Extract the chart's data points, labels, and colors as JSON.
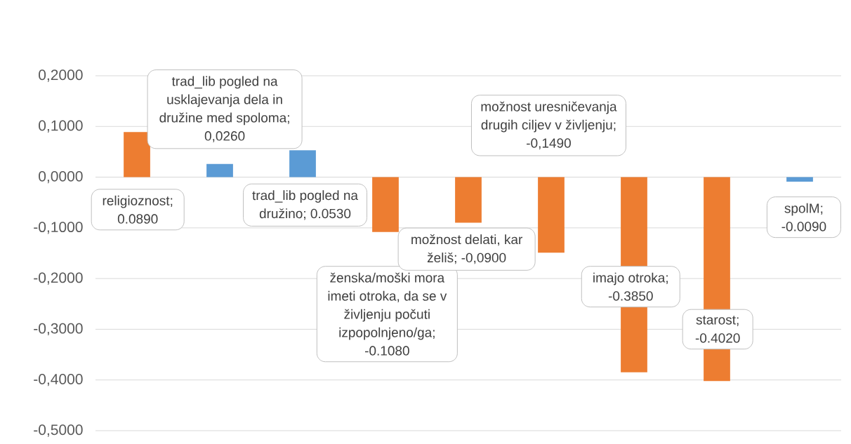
{
  "chart_data": {
    "type": "bar",
    "categories": [
      null,
      null,
      null,
      null,
      null,
      null,
      null,
      null,
      null
    ],
    "values": [
      0.089,
      0.026,
      0.053,
      -0.108,
      -0.09,
      -0.149,
      -0.385,
      -0.402,
      -0.009
    ],
    "colors": [
      "#ed7d31",
      "#5b9bd5",
      "#5b9bd5",
      "#ed7d31",
      "#ed7d31",
      "#ed7d31",
      "#ed7d31",
      "#ed7d31",
      "#5b9bd5"
    ],
    "value_labels": [
      "religioznost; 0.0890",
      "trad_lib pogled na usklajevanja dela in družine med spoloma; 0,0260",
      "trad_lib pogled na družino; 0.0530",
      "ženska/moški mora imeti otroka, da se v življenju počuti izpopolnjeno/ga; -0.1080",
      "možnost delati, kar želiš; -0,0900",
      "možnost uresničevanja drugih ciljev v življenju; -0,1490",
      "imajo otroka; -0.3850",
      "starost; -0.4020",
      "spolM; -0.0090"
    ],
    "ylim": [
      -0.5,
      0.2
    ],
    "yticks": [
      {
        "value": -0.5,
        "label": "-0,5000"
      },
      {
        "value": -0.4,
        "label": "-0,4000"
      },
      {
        "value": -0.3,
        "label": "-0,3000"
      },
      {
        "value": -0.2,
        "label": "-0,2000"
      },
      {
        "value": -0.1,
        "label": "-0,1000"
      },
      {
        "value": 0,
        "label": "0,0000"
      },
      {
        "value": 0.1,
        "label": "0,1000"
      },
      {
        "value": 0.2,
        "label": "0,2000"
      }
    ],
    "grid": "y",
    "tick_labels": "y"
  }
}
